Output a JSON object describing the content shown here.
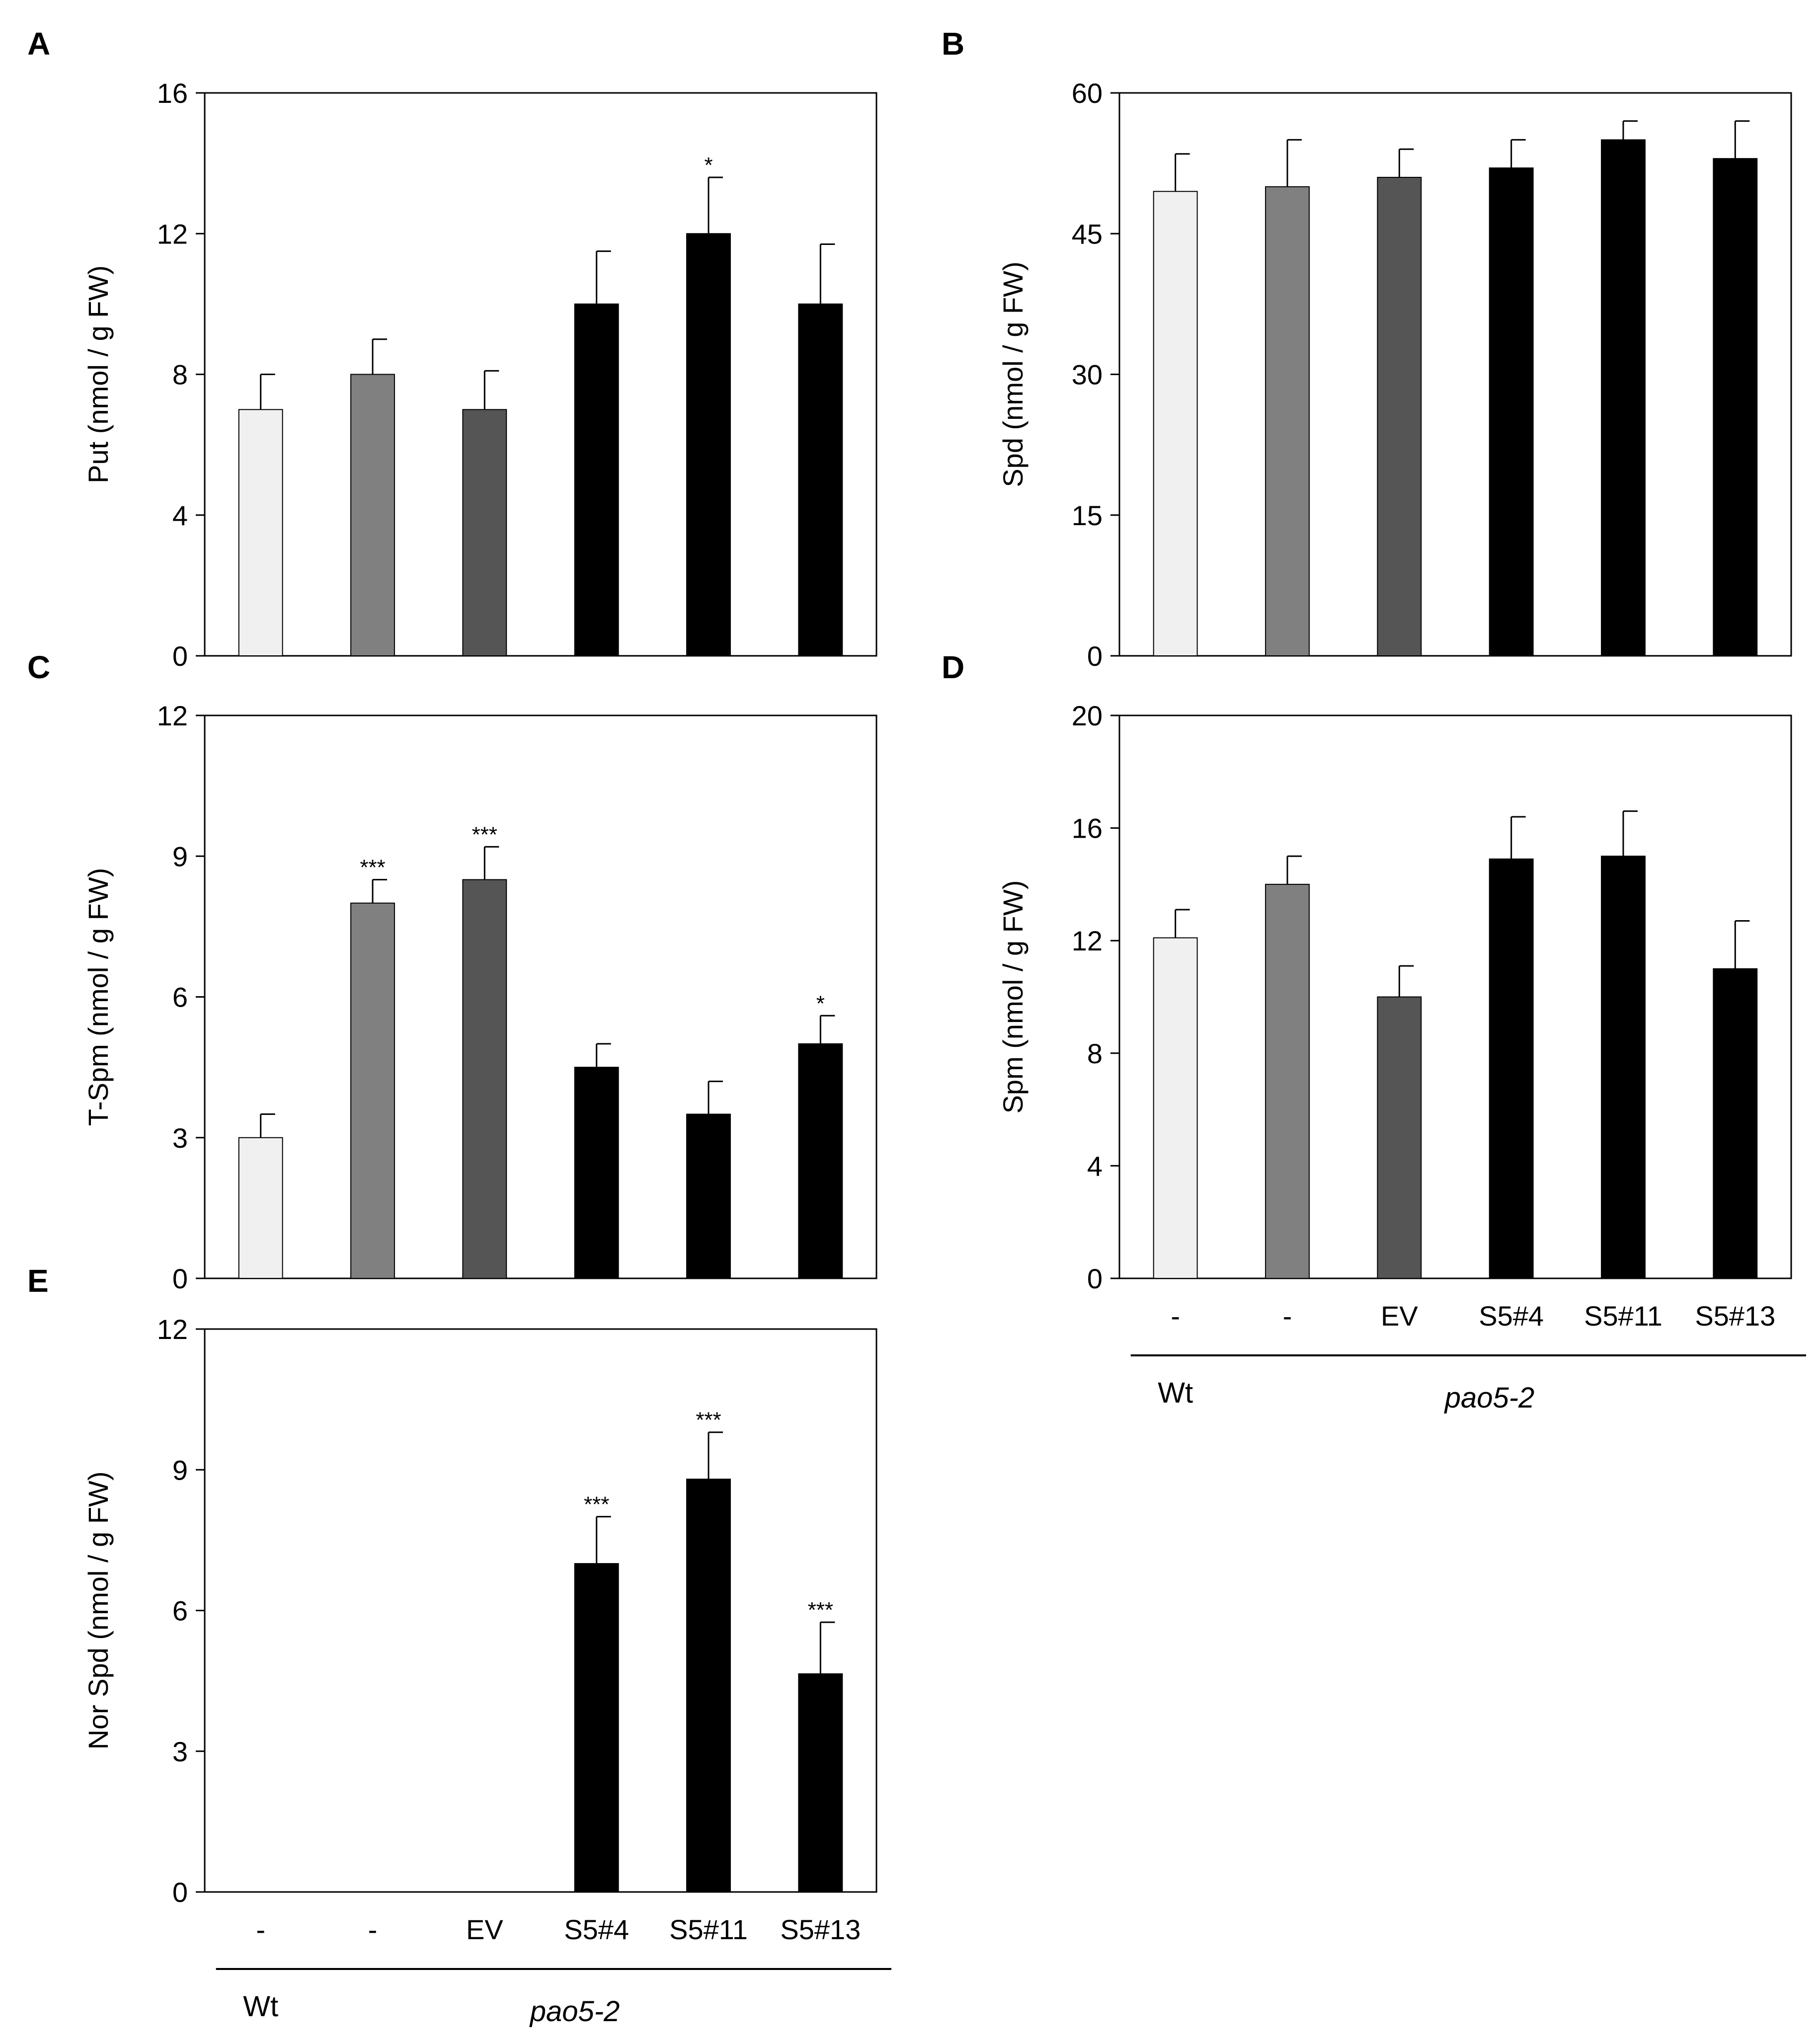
{
  "colors": {
    "Wt": "#f0f0f0",
    "pao5-2 -": "#808080",
    "EV": "#555555",
    "transgenic": "#000000",
    "axis": "#000000"
  },
  "groups": {
    "wt_label": "Wt",
    "mutant_label": "pao5-2"
  },
  "chart_data": [
    {
      "panel": "A",
      "type": "bar",
      "ylabel": "Put (nmol / g FW)",
      "categories": [
        "-",
        "-",
        "EV",
        "S5#4",
        "S5#11",
        "S5#13"
      ],
      "groups": [
        "Wt",
        "pao5-2",
        "pao5-2",
        "pao5-2",
        "pao5-2",
        "pao5-2"
      ],
      "values": [
        7,
        8,
        7,
        10,
        12,
        10
      ],
      "errors": [
        1,
        1,
        1.1,
        1.5,
        1.6,
        1.7
      ],
      "significance": [
        "",
        "",
        "",
        "",
        "*",
        ""
      ],
      "ylim": [
        0,
        16
      ],
      "yticks": [
        "0",
        "4",
        "8",
        "12",
        "16"
      ],
      "show_x_labels": false
    },
    {
      "panel": "B",
      "type": "bar",
      "ylabel": "Spd (nmol / g FW)",
      "categories": [
        "-",
        "-",
        "EV",
        "S5#4",
        "S5#11",
        "S5#13"
      ],
      "groups": [
        "Wt",
        "pao5-2",
        "pao5-2",
        "pao5-2",
        "pao5-2",
        "pao5-2"
      ],
      "values": [
        49.5,
        50,
        51,
        52,
        55,
        53
      ],
      "errors": [
        4,
        5,
        3,
        3,
        2,
        4
      ],
      "significance": [
        "",
        "",
        "",
        "",
        "",
        ""
      ],
      "ylim": [
        0,
        60
      ],
      "yticks": [
        "0",
        "15",
        "30",
        "45",
        "60"
      ],
      "show_x_labels": false
    },
    {
      "panel": "C",
      "type": "bar",
      "ylabel": "T-Spm (nmol / g FW)",
      "categories": [
        "-",
        "-",
        "EV",
        "S5#4",
        "S5#11",
        "S5#13"
      ],
      "groups": [
        "Wt",
        "pao5-2",
        "pao5-2",
        "pao5-2",
        "pao5-2",
        "pao5-2"
      ],
      "values": [
        3,
        8,
        8.5,
        4.5,
        3.5,
        5
      ],
      "errors": [
        0.5,
        0.5,
        0.7,
        0.5,
        0.7,
        0.6
      ],
      "significance": [
        "",
        "***",
        "***",
        "",
        "",
        "*"
      ],
      "ylim": [
        0,
        12
      ],
      "yticks": [
        "0",
        "3",
        "6",
        "9",
        "12"
      ],
      "show_x_labels": false
    },
    {
      "panel": "D",
      "type": "bar",
      "ylabel": "Spm (nmol / g FW)",
      "categories": [
        "-",
        "-",
        "EV",
        "S5#4",
        "S5#11",
        "S5#13"
      ],
      "groups": [
        "Wt",
        "pao5-2",
        "pao5-2",
        "pao5-2",
        "pao5-2",
        "pao5-2"
      ],
      "values": [
        12.1,
        14,
        10,
        14.9,
        15,
        11
      ],
      "errors": [
        1,
        1,
        1.1,
        1.5,
        1.6,
        1.7
      ],
      "significance": [
        "",
        "",
        "",
        "",
        "",
        ""
      ],
      "ylim": [
        0,
        20
      ],
      "yticks": [
        "0",
        "4",
        "8",
        "12",
        "16",
        "20"
      ],
      "show_x_labels": true
    },
    {
      "panel": "E",
      "type": "bar",
      "ylabel": "Nor Spd  (nmol / g FW)",
      "categories": [
        "-",
        "-",
        "EV",
        "S5#4",
        "S5#11",
        "S5#13"
      ],
      "groups": [
        "Wt",
        "pao5-2",
        "pao5-2",
        "pao5-2",
        "pao5-2",
        "pao5-2"
      ],
      "values": [
        0,
        0,
        0,
        7,
        8.8,
        4.65
      ],
      "errors": [
        0,
        0,
        0,
        1,
        1,
        1.1
      ],
      "significance": [
        "",
        "",
        "",
        "***",
        "***",
        "***"
      ],
      "ylim": [
        0,
        12
      ],
      "yticks": [
        "0",
        "3",
        "6",
        "9",
        "12"
      ],
      "show_x_labels": true
    }
  ]
}
